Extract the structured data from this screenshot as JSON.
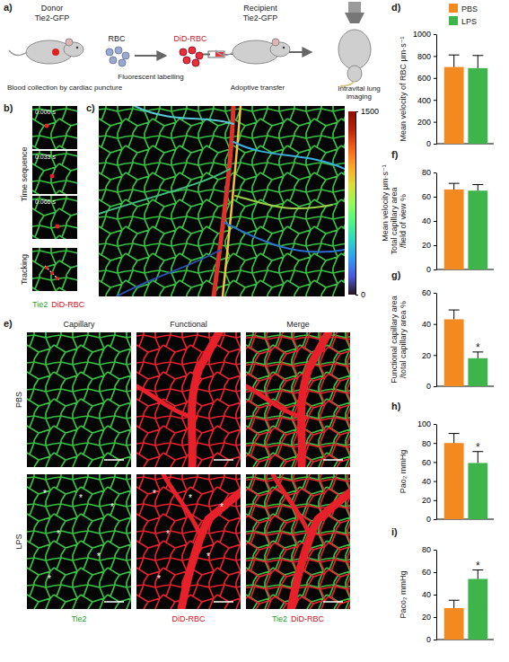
{
  "diagram": {
    "panel": "a)",
    "donor": {
      "title": "Donor",
      "strain": "Tie2-GFP",
      "caption": "Blood collection by cardiac puncture"
    },
    "rbc": "RBC",
    "labelled": "DiD-RBC",
    "labelling": "Fluorescent labelling",
    "recipient": {
      "title": "Recipient",
      "strain": "Tie2-GFP",
      "caption": "Adoptive transfer"
    },
    "imaging": "Intravital lung imaging"
  },
  "time_sequence": {
    "panel": "b)",
    "label": "Time sequence",
    "frames": [
      "0.000 s",
      "0.033 s",
      "0.066 s"
    ],
    "tracking": "Tracking",
    "channels": [
      "Tie2",
      "DiD-RBC"
    ]
  },
  "velocity_map": {
    "panel": "c)",
    "colorbar": {
      "label": "Mean velocity µm·s⁻¹",
      "range": [
        0,
        1500
      ],
      "ticks": [
        0,
        1500
      ]
    }
  },
  "capillary_images": {
    "panel": "e)",
    "columns": [
      "Capillary",
      "Functional",
      "Merge"
    ],
    "rows": [
      "PBS",
      "LPS"
    ],
    "channels": [
      "Tie2",
      "DiD-RBC"
    ],
    "marker": "*"
  },
  "chart_data": [
    {
      "type": "bar",
      "panel": "d)",
      "y_label": "Mean velocity of RBC µm·s⁻¹",
      "categories": [
        "PBS",
        "LPS"
      ],
      "values": [
        700,
        690
      ],
      "errors": [
        110,
        115
      ],
      "colors": [
        "#f4891f",
        "#3db54a"
      ],
      "ylim": [
        0,
        1000
      ],
      "yticks": [
        0,
        200,
        400,
        600,
        800,
        1000
      ],
      "legend": "top-right",
      "tick_labels": "y"
    },
    {
      "type": "bar",
      "panel": "f)",
      "y_label": "Total capillary area /field of view %",
      "categories": [
        "PBS",
        "LPS"
      ],
      "values": [
        66,
        65
      ],
      "errors": [
        5,
        5
      ],
      "colors": [
        "#f4891f",
        "#3db54a"
      ],
      "ylim": [
        0,
        80
      ],
      "yticks": [
        0,
        20,
        40,
        60,
        80
      ],
      "tick_labels": "y"
    },
    {
      "type": "bar",
      "panel": "g)",
      "y_label": "Functional capillary area /total capillary area %",
      "categories": [
        "PBS",
        "LPS"
      ],
      "values": [
        43,
        18
      ],
      "errors": [
        6,
        4
      ],
      "colors": [
        "#f4891f",
        "#3db54a"
      ],
      "ylim": [
        0,
        60
      ],
      "yticks": [
        0,
        20,
        40,
        60
      ],
      "annotations": [
        {
          "text": "*",
          "category": "LPS"
        }
      ],
      "tick_labels": "y"
    },
    {
      "type": "bar",
      "panel": "h)",
      "y_label": "Pao₂ mmHg",
      "categories": [
        "PBS",
        "LPS"
      ],
      "values": [
        80,
        59
      ],
      "errors": [
        10,
        12
      ],
      "colors": [
        "#f4891f",
        "#3db54a"
      ],
      "ylim": [
        0,
        100
      ],
      "yticks": [
        0,
        20,
        40,
        60,
        80,
        100
      ],
      "annotations": [
        {
          "text": "*",
          "category": "LPS"
        }
      ],
      "tick_labels": "y"
    },
    {
      "type": "bar",
      "panel": "i)",
      "y_label": "Paco₂ mmHg",
      "categories": [
        "PBS",
        "LPS"
      ],
      "values": [
        28,
        54
      ],
      "errors": [
        7,
        8
      ],
      "colors": [
        "#f4891f",
        "#3db54a"
      ],
      "ylim": [
        0,
        80
      ],
      "yticks": [
        0,
        20,
        40,
        60,
        80
      ],
      "annotations": [
        {
          "text": "*",
          "category": "LPS"
        }
      ],
      "tick_labels": "y"
    }
  ]
}
